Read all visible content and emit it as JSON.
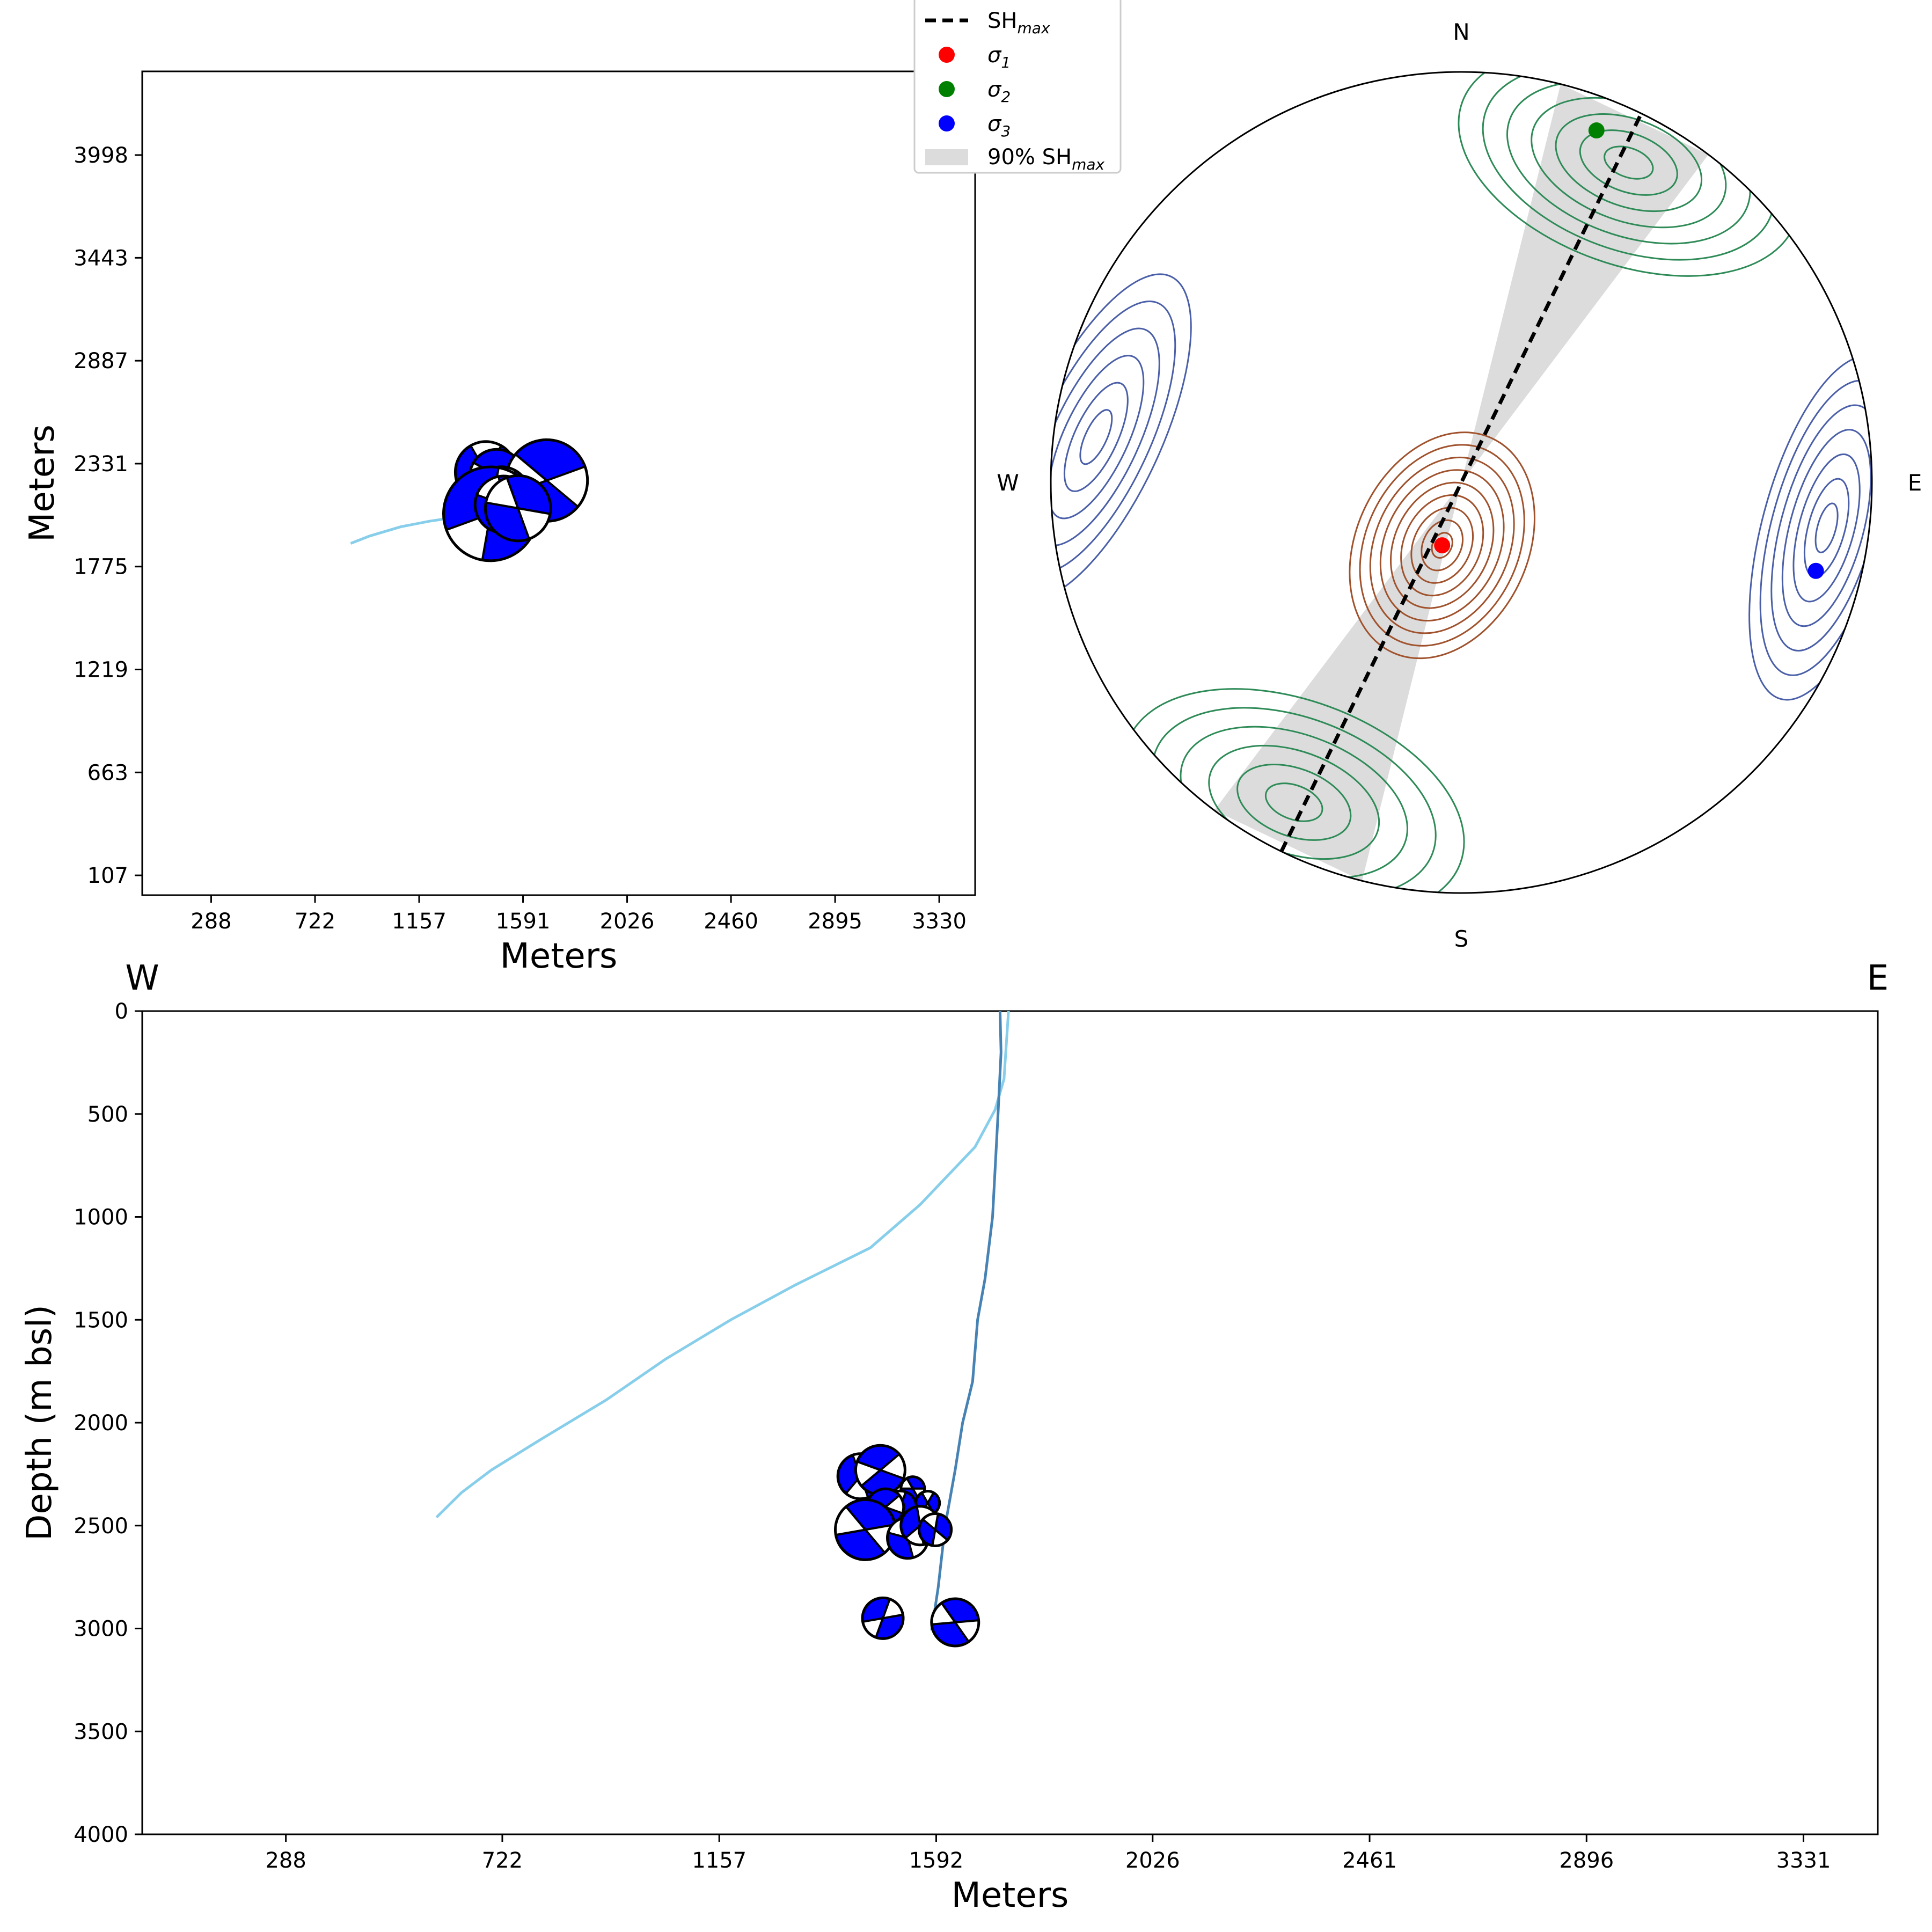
{
  "chart_data": [
    {
      "type": "scatter",
      "panel": "map-view",
      "xlabel": "Meters",
      "ylabel": "Meters",
      "xticks": [
        "288",
        "722",
        "1157",
        "1591",
        "2026",
        "2460",
        "2895",
        "3330"
      ],
      "yticks": [
        "3998",
        "3443",
        "2887",
        "2331",
        "1775",
        "1219",
        "663",
        "107"
      ],
      "xlim": [
        0,
        3480
      ],
      "ylim": [
        0,
        4450
      ],
      "well_path": [
        [
          871,
          1900
        ],
        [
          950,
          1940
        ],
        [
          1080,
          1990
        ],
        [
          1200,
          2020
        ],
        [
          1330,
          2045
        ],
        [
          1440,
          2065
        ]
      ],
      "well_end": [
        1740,
        2230
      ],
      "focal_mechanisms": [
        {
          "x": 1436,
          "y": 2285,
          "r": 30,
          "rot": 120
        },
        {
          "x": 1480,
          "y": 2265,
          "r": 26,
          "rot": 210
        },
        {
          "x": 1690,
          "y": 2240,
          "r": 40,
          "rot": 40
        },
        {
          "x": 1500,
          "y": 2160,
          "r": 28,
          "rot": 300
        },
        {
          "x": 1455,
          "y": 2060,
          "r": 46,
          "rot": 160
        },
        {
          "x": 1510,
          "y": 2110,
          "r": 28,
          "rot": 80
        },
        {
          "x": 1570,
          "y": 2090,
          "r": 32,
          "rot": 250
        }
      ]
    },
    {
      "type": "stereonet",
      "panel": "stress-orientation",
      "directions": {
        "north": "N",
        "east": "E",
        "south": "S",
        "west": "W"
      },
      "sigma1": {
        "trend": 197,
        "plunge": 77,
        "color": "#ff0000"
      },
      "sigma2": {
        "trend": 21,
        "plunge": 9,
        "color": "#008000"
      },
      "sigma3": {
        "trend": 104,
        "plunge": 12,
        "color": "#0000ff"
      },
      "shmax_azimuth": 26,
      "shmax_90_range": [
        14,
        37
      ],
      "contour_colors": {
        "sigma1": "#a0522d",
        "sigma2": "#2e8b57",
        "sigma3": "#4a5fa8",
        "shmax_band": "#dcdcdc"
      },
      "legend": [
        {
          "key": "shmax",
          "label": "SH",
          "sub": "max"
        },
        {
          "key": "s1",
          "label": "σ",
          "sub": "1"
        },
        {
          "key": "s2",
          "label": "σ",
          "sub": "2"
        },
        {
          "key": "s3",
          "label": "σ",
          "sub": "3"
        },
        {
          "key": "band",
          "label": "90% SH",
          "sub": "max"
        }
      ]
    },
    {
      "type": "scatter",
      "panel": "cross-section",
      "xlabel": "Meters",
      "ylabel": "Depth (m bsl)",
      "left_label": "W",
      "right_label": "E",
      "xticks": [
        "288",
        "722",
        "1157",
        "1592",
        "2026",
        "2461",
        "2896",
        "3331"
      ],
      "yticks": [
        "0",
        "500",
        "1000",
        "1500",
        "2000",
        "2500",
        "3000",
        "3500",
        "4000"
      ],
      "xlim": [
        0,
        3480
      ],
      "ylim": [
        4000,
        0
      ],
      "wells": [
        {
          "color": "#87ceeb",
          "path": [
            [
              1737,
              0
            ],
            [
              1728,
              330
            ],
            [
              1710,
              480
            ],
            [
              1670,
              660
            ],
            [
              1560,
              940
            ],
            [
              1460,
              1150
            ],
            [
              1310,
              1330
            ],
            [
              1180,
              1500
            ],
            [
              1050,
              1690
            ],
            [
              930,
              1890
            ],
            [
              800,
              2080
            ],
            [
              700,
              2230
            ],
            [
              640,
              2340
            ],
            [
              590,
              2460
            ]
          ]
        },
        {
          "color": "#4682b4",
          "path": [
            [
              1720,
              0
            ],
            [
              1722,
              200
            ],
            [
              1716,
              500
            ],
            [
              1705,
              1000
            ],
            [
              1690,
              1300
            ],
            [
              1675,
              1500
            ],
            [
              1665,
              1800
            ],
            [
              1645,
              2000
            ],
            [
              1630,
              2230
            ],
            [
              1610,
              2500
            ],
            [
              1596,
              2800
            ],
            [
              1583,
              3010
            ]
          ]
        }
      ],
      "focal_mechanisms": [
        {
          "x": 1440,
          "y": 2260,
          "r": 42,
          "rot": 130
        },
        {
          "x": 1480,
          "y": 2230,
          "r": 46,
          "rot": 200
        },
        {
          "x": 1545,
          "y": 2320,
          "r": 22,
          "rot": 60
        },
        {
          "x": 1575,
          "y": 2390,
          "r": 22,
          "rot": 300
        },
        {
          "x": 1520,
          "y": 2410,
          "r": 30,
          "rot": 110
        },
        {
          "x": 1490,
          "y": 2410,
          "r": 34,
          "rot": 20
        },
        {
          "x": 1450,
          "y": 2520,
          "r": 56,
          "rot": 230
        },
        {
          "x": 1535,
          "y": 2560,
          "r": 38,
          "rot": 75
        },
        {
          "x": 1560,
          "y": 2500,
          "r": 36,
          "rot": 140
        },
        {
          "x": 1590,
          "y": 2520,
          "r": 30,
          "rot": 280
        },
        {
          "x": 1485,
          "y": 2950,
          "r": 38,
          "rot": 170
        },
        {
          "x": 1630,
          "y": 2970,
          "r": 44,
          "rot": 55
        }
      ]
    }
  ]
}
